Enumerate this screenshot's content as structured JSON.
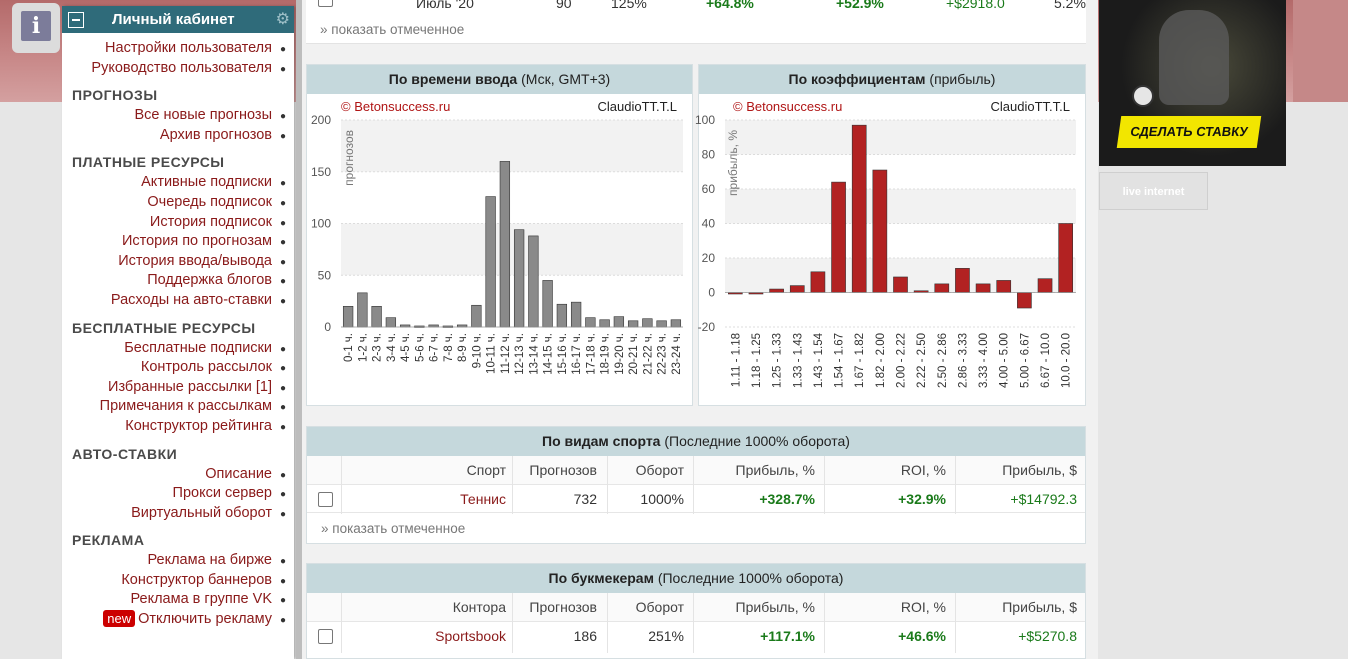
{
  "sidebar": {
    "info_icon": "i",
    "header_title": "Личный кабинет",
    "top_links": [
      "Настройки пользователя",
      "Руководство пользователя"
    ],
    "sections": [
      {
        "title": "ПРОГНОЗЫ",
        "links": [
          "Все новые прогнозы",
          "Архив прогнозов"
        ]
      },
      {
        "title": "ПЛАТНЫЕ РЕСУРСЫ",
        "links": [
          "Активные подписки",
          "Очередь подписок",
          "История подписок",
          "История по прогнозам",
          "История ввода/вывода",
          "Поддержка блогов",
          "Расходы на авто-ставки"
        ]
      },
      {
        "title": "БЕСПЛАТНЫЕ РЕСУРСЫ",
        "links": [
          "Бесплатные подписки",
          "Контроль рассылок",
          "Избранные рассылки [1]",
          "Примечания к рассылкам",
          "Конструктор рейтинга"
        ]
      },
      {
        "title": "АВТО-СТАВКИ",
        "links": [
          "Описание",
          "Прокси сервер",
          "Виртуальный оборот"
        ]
      },
      {
        "title": "РЕКЛАМА",
        "links": [
          "Реклама на бирже",
          "Конструктор баннеров",
          "Реклама в группе VK"
        ]
      }
    ],
    "new_badge": "new",
    "last_link": "Отключить рекламу"
  },
  "top_row": {
    "month": "Июль '20",
    "count": "90",
    "turnover": "125%",
    "profit_pct": "+64.8%",
    "roi": "+52.9%",
    "profit_usd": "+$2918.0",
    "last": "5.2%",
    "show_selected": "» показать отмеченное"
  },
  "chart_time": {
    "header_bold": "По времени ввода",
    "header_rest": "(Мск, GMT+3)",
    "watermark": "© Betonsuccess.ru",
    "user": "ClaudioTT.T.L",
    "ylabel": "прогнозов"
  },
  "chart_coef": {
    "header_bold": "По коэффициентам",
    "header_rest": "(прибыль)",
    "watermark": "© Betonsuccess.ru",
    "user": "ClaudioTT.T.L",
    "ylabel": "прибыль, %"
  },
  "chart_data": [
    {
      "type": "bar",
      "categories": [
        "0-1 ч.",
        "1-2 ч.",
        "2-3 ч.",
        "3-4 ч.",
        "4-5 ч.",
        "5-6 ч.",
        "6-7 ч.",
        "7-8 ч.",
        "8-9 ч.",
        "9-10 ч.",
        "10-11 ч.",
        "11-12 ч.",
        "12-13 ч.",
        "13-14 ч.",
        "14-15 ч.",
        "15-16 ч.",
        "16-17 ч.",
        "17-18 ч.",
        "18-19 ч.",
        "19-20 ч.",
        "20-21 ч.",
        "21-22 ч.",
        "22-23 ч.",
        "23-24 ч."
      ],
      "values": [
        20,
        33,
        20,
        9,
        2,
        1,
        2,
        1,
        2,
        21,
        126,
        160,
        94,
        88,
        45,
        22,
        24,
        9,
        7,
        10,
        6,
        8,
        6,
        7
      ],
      "ylim": [
        0,
        200
      ],
      "yticks": [
        0,
        50,
        100,
        150,
        200
      ],
      "ylabel": "прогнозов",
      "color": "#8a8a8a"
    },
    {
      "type": "bar",
      "categories": [
        "1.11 - 1.18",
        "1.18 - 1.25",
        "1.25 - 1.33",
        "1.33 - 1.43",
        "1.43 - 1.54",
        "1.54 - 1.67",
        "1.67 - 1.82",
        "1.82 - 2.00",
        "2.00 - 2.22",
        "2.22 - 2.50",
        "2.50 - 2.86",
        "2.86 - 3.33",
        "3.33 - 4.00",
        "4.00 - 5.00",
        "5.00 - 6.67",
        "6.67 - 10.0",
        "10.0 - 20.0"
      ],
      "values": [
        0,
        0,
        2,
        4,
        12,
        64,
        97,
        71,
        9,
        1,
        5,
        14,
        5,
        7,
        -9,
        8,
        40
      ],
      "ylim": [
        -20,
        100
      ],
      "yticks": [
        -20,
        0,
        20,
        40,
        60,
        80,
        100
      ],
      "ylabel": "прибыль, %",
      "color": "#b22222"
    }
  ],
  "sports_table": {
    "header_bold": "По видам спорта",
    "header_rest": "(Последние 1000% оборота)",
    "columns": [
      "Спорт",
      "Прогнозов",
      "Оборот",
      "Прибыль, %",
      "ROI, %",
      "Прибыль, $"
    ],
    "rows": [
      {
        "name": "Теннис",
        "count": "732",
        "turnover": "1000%",
        "profit_pct": "+328.7%",
        "roi": "+32.9%",
        "profit_usd": "+$14792.3"
      }
    ],
    "show_selected": "» показать отмеченное"
  },
  "bookmaker_table": {
    "header_bold": "По букмекерам",
    "header_rest": "(Последние 1000% оборота)",
    "columns": [
      "Контора",
      "Прогнозов",
      "Оборот",
      "Прибыль, %",
      "ROI, %",
      "Прибыль, $"
    ],
    "rows": [
      {
        "name": "Sportsbook",
        "count": "186",
        "turnover": "251%",
        "profit_pct": "+117.1%",
        "roi": "+46.6%",
        "profit_usd": "+$5270.8"
      }
    ]
  },
  "ad": {
    "button": "СДЕЛАТЬ СТАВКУ",
    "banner2": "live internet"
  }
}
